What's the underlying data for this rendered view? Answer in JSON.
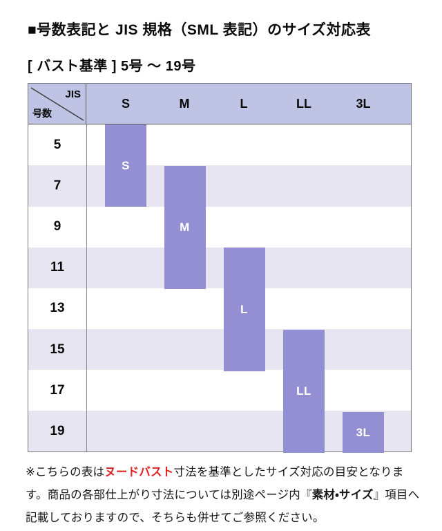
{
  "page": {
    "title": "■号数表記と JIS 規格（SML 表記）のサイズ対応表",
    "subtitle": "[ バスト基準 ] 5号 〜 19号"
  },
  "table": {
    "corner": {
      "top_right": "JIS",
      "bottom_left": "号数"
    },
    "columns": [
      "S",
      "M",
      "L",
      "LL",
      "3L"
    ],
    "rows": [
      "5",
      "7",
      "9",
      "11",
      "13",
      "15",
      "17",
      "19"
    ]
  },
  "chart_data": {
    "type": "table",
    "title": "号数表記と JIS 規格（SML 表記）のサイズ対応表",
    "subtitle": "バスト基準 5号〜19号",
    "columns": [
      "S",
      "M",
      "L",
      "LL",
      "3L"
    ],
    "row_labels": [
      "5",
      "7",
      "9",
      "11",
      "13",
      "15",
      "17",
      "19"
    ],
    "bars": [
      {
        "label": "S",
        "col": 0,
        "row_start": 0,
        "row_span": 2,
        "covers": "5号〜7号"
      },
      {
        "label": "M",
        "col": 1,
        "row_start": 1,
        "row_span": 3,
        "covers": "7号〜11号"
      },
      {
        "label": "L",
        "col": 2,
        "row_start": 3,
        "row_span": 3,
        "covers": "11号〜15号"
      },
      {
        "label": "LL",
        "col": 3,
        "row_start": 5,
        "row_span": 3,
        "covers": "15号〜19号"
      },
      {
        "label": "3L",
        "col": 4,
        "row_start": 7,
        "row_span": 1,
        "covers": "19号"
      }
    ],
    "colors": {
      "bar": "#948ed2",
      "header_bg": "#bfc3e4",
      "stripe": "#e8e5f2",
      "note_red": "#e02222"
    },
    "legend_position": "none",
    "grid": "row-stripes"
  },
  "footer": {
    "part1": "※こちらの表は",
    "highlight_red": "ヌードバスト",
    "part2": "寸法を基準としたサイズ対応の目安となります。商品の各部仕上がり寸法については別途ページ内『",
    "highlight_bold": "素材・サイズ",
    "part3": "』項目へ記載しておりますので、そちらも併せてご参照ください。"
  }
}
